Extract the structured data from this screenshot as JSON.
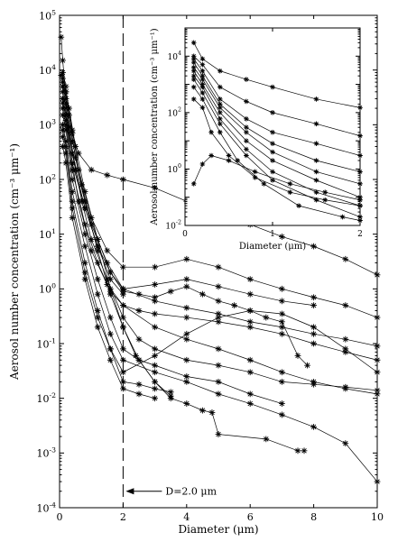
{
  "chart_data": [
    {
      "type": "line",
      "panel": "main",
      "xlabel": "Diameter (μm)",
      "ylabel": "Aerosol number concentration (cm⁻³ μm⁻¹)",
      "xlim": [
        0,
        10
      ],
      "ylim_log10": [
        -4,
        5
      ],
      "yscale": "log",
      "x_ticks": [
        0,
        2,
        4,
        6,
        8,
        10
      ],
      "y_ticks": [
        {
          "value": 0.0001,
          "label": "10",
          "exp": "-4"
        },
        {
          "value": 0.001,
          "label": "10",
          "exp": "-3"
        },
        {
          "value": 0.01,
          "label": "10",
          "exp": "-2"
        },
        {
          "value": 0.1,
          "label": "10",
          "exp": "-1"
        },
        {
          "value": 1,
          "label": "10",
          "exp": "0"
        },
        {
          "value": 10,
          "label": "10",
          "exp": "1"
        },
        {
          "value": 100,
          "label": "10",
          "exp": "2"
        },
        {
          "value": 1000,
          "label": "10",
          "exp": "3"
        },
        {
          "value": 10000,
          "label": "10",
          "exp": "4"
        },
        {
          "value": 100000,
          "label": "10",
          "exp": "5"
        }
      ],
      "grid": false,
      "annotations": [
        {
          "kind": "vline",
          "x": 2.0,
          "style": "dashed"
        },
        {
          "kind": "text",
          "text": "D=2.0 μm",
          "arrow_to_x": 2.0,
          "y": 0.0002
        }
      ],
      "series": [
        {
          "x": [
            0.05,
            0.1,
            0.2,
            0.3,
            0.5,
            0.8,
            1.2,
            1.6,
            2.0
          ],
          "y": [
            40000,
            15000,
            3000,
            900,
            150,
            30,
            6,
            1.5,
            0.8
          ]
        },
        {
          "x": [
            0.05,
            0.1,
            0.2,
            0.3,
            0.5,
            0.8,
            1.2,
            1.6,
            2.0,
            2.4,
            3.0,
            3.5
          ],
          "y": [
            8000,
            9000,
            5000,
            1500,
            250,
            40,
            5,
            0.8,
            0.2,
            0.06,
            0.02,
            0.011
          ]
        },
        {
          "x": [
            0.1,
            0.2,
            0.3,
            0.5,
            0.8,
            1.2,
            1.6,
            2.0,
            2.5,
            3.0,
            3.5,
            4.0,
            4.5,
            4.8,
            5.0,
            6.5,
            7.5,
            7.7
          ],
          "y": [
            5000,
            4000,
            2000,
            400,
            60,
            8,
            1,
            0.2,
            0.05,
            0.02,
            0.01,
            0.008,
            0.006,
            0.0055,
            0.0022,
            0.0018,
            0.0011,
            0.0011
          ]
        },
        {
          "x": [
            0.1,
            0.2,
            0.4,
            0.6,
            1.0,
            1.5,
            2.0,
            3.0,
            4.0,
            5.0,
            6.0,
            7.0,
            8.0,
            9.0,
            10.0
          ],
          "y": [
            6000,
            3000,
            700,
            300,
            150,
            120,
            100,
            70,
            40,
            25,
            15,
            9,
            6,
            3.5,
            1.8
          ]
        },
        {
          "x": [
            0.1,
            0.2,
            0.4,
            0.6,
            1.0,
            1.5,
            2.0,
            3.0,
            4.0,
            5.0,
            6.0,
            7.0,
            8.0,
            9.0,
            10.0
          ],
          "y": [
            7000,
            4000,
            800,
            150,
            20,
            5,
            2.5,
            2.5,
            3.5,
            2.5,
            1.5,
            1.0,
            0.7,
            0.5,
            0.3
          ]
        },
        {
          "x": [
            0.1,
            0.2,
            0.4,
            0.7,
            1.0,
            1.5,
            2.0,
            3.0,
            4.0,
            5.0,
            6.0,
            7.0,
            8.0,
            9.0,
            10.0
          ],
          "y": [
            5000,
            2500,
            500,
            80,
            15,
            3,
            1.0,
            0.6,
            0.45,
            0.35,
            0.25,
            0.2,
            0.15,
            0.12,
            0.09
          ]
        },
        {
          "x": [
            0.1,
            0.2,
            0.4,
            0.7,
            1.0,
            1.5,
            2.0,
            2.5,
            3.0,
            4.0,
            5.0,
            6.0,
            7.0,
            8.0,
            9.0,
            10.0
          ],
          "y": [
            4000,
            2000,
            300,
            40,
            8,
            1.5,
            0.3,
            0.12,
            0.08,
            0.05,
            0.04,
            0.03,
            0.02,
            0.018,
            0.016,
            0.014
          ]
        },
        {
          "x": [
            0.1,
            0.2,
            0.4,
            0.6,
            1.0,
            1.5,
            2.0,
            3.0,
            4.0,
            5.0,
            6.0,
            7.0,
            8.0,
            9.0,
            10.0
          ],
          "y": [
            3000,
            1500,
            200,
            40,
            5,
            1.2,
            0.5,
            0.2,
            0.12,
            0.08,
            0.05,
            0.03,
            0.02,
            0.015,
            0.012
          ]
        },
        {
          "x": [
            0.1,
            0.2,
            0.4,
            0.8,
            1.2,
            1.6,
            2.0,
            2.5,
            3.0,
            3.5,
            4.0,
            4.5,
            5.0,
            5.5,
            6.0,
            6.5,
            7.0,
            7.5,
            7.8
          ],
          "y": [
            3000,
            1500,
            300,
            40,
            8,
            2,
            0.9,
            0.8,
            0.7,
            0.9,
            1.1,
            0.8,
            0.6,
            0.5,
            0.4,
            0.3,
            0.25,
            0.06,
            0.04
          ]
        },
        {
          "x": [
            0.1,
            0.2,
            0.4,
            0.8,
            1.2,
            1.6,
            2.0,
            3.0,
            4.0,
            5.0,
            6.0,
            7.0,
            8.0
          ],
          "y": [
            2500,
            1200,
            200,
            30,
            6,
            2,
            1.0,
            1.2,
            1.5,
            1.1,
            0.8,
            0.6,
            0.5
          ]
        },
        {
          "x": [
            0.1,
            0.2,
            0.4,
            0.8,
            1.2,
            1.6,
            2.0,
            2.5,
            3.0,
            4.0,
            5.0,
            6.0,
            7.0
          ],
          "y": [
            1500,
            800,
            100,
            10,
            1.5,
            0.3,
            0.08,
            0.05,
            0.04,
            0.025,
            0.02,
            0.012,
            0.008
          ]
        },
        {
          "x": [
            0.1,
            0.2,
            0.4,
            0.8,
            1.2,
            1.6,
            2.0,
            3.0,
            4.0,
            5.0,
            6.0,
            7.0,
            8.0,
            9.0,
            10.0
          ],
          "y": [
            1000,
            500,
            60,
            6,
            0.8,
            0.15,
            0.05,
            0.03,
            0.02,
            0.012,
            0.008,
            0.005,
            0.003,
            0.0015,
            0.0003
          ]
        },
        {
          "x": [
            0.1,
            0.2,
            0.4,
            0.8,
            1.2,
            1.6,
            2.0,
            2.5,
            3.0,
            3.5
          ],
          "y": [
            800,
            400,
            40,
            3,
            0.4,
            0.08,
            0.02,
            0.018,
            0.015,
            0.013
          ]
        },
        {
          "x": [
            0.1,
            0.2,
            0.4,
            0.8,
            1.2,
            1.6,
            2.0,
            3.0,
            4.0,
            5.0,
            6.0,
            7.0,
            8.0,
            9.0,
            10.0
          ],
          "y": [
            600,
            300,
            30,
            2,
            0.3,
            0.08,
            0.03,
            0.06,
            0.15,
            0.3,
            0.4,
            0.35,
            0.2,
            0.08,
            0.03
          ]
        },
        {
          "x": [
            0.1,
            0.2,
            0.4,
            0.8,
            1.2,
            1.6,
            2.0,
            2.5,
            3.0,
            4.0,
            5.0,
            6.0,
            7.0,
            8.0,
            9.0,
            10.0
          ],
          "y": [
            2000,
            1000,
            150,
            15,
            3,
            0.9,
            0.5,
            0.4,
            0.35,
            0.3,
            0.25,
            0.2,
            0.15,
            0.1,
            0.07,
            0.05
          ]
        },
        {
          "x": [
            0.1,
            0.2,
            0.4,
            0.8,
            1.2,
            1.6,
            2.0,
            2.5,
            3.0
          ],
          "y": [
            400,
            200,
            20,
            1.5,
            0.2,
            0.05,
            0.015,
            0.012,
            0.01
          ]
        }
      ]
    },
    {
      "type": "line",
      "panel": "inset",
      "xlabel": "Diameter (μm)",
      "ylabel": "Aerosol number concentration (cm⁻³ μm⁻¹)",
      "xlim": [
        0,
        2
      ],
      "ylim_log10": [
        -2,
        5
      ],
      "yscale": "log",
      "x_ticks": [
        0,
        1,
        2
      ],
      "y_ticks": [
        {
          "value": 0.01,
          "label": "10",
          "exp": "-2"
        },
        {
          "value": 1,
          "label": "10",
          "exp": "0"
        },
        {
          "value": 100,
          "label": "10",
          "exp": "2"
        },
        {
          "value": 10000,
          "label": "10",
          "exp": "4"
        }
      ],
      "grid": false,
      "series": [
        {
          "x": [
            0.1,
            0.2,
            0.4,
            0.7,
            1.0,
            1.5,
            2.0
          ],
          "y": [
            30000,
            8000,
            3000,
            1500,
            800,
            300,
            150
          ]
        },
        {
          "x": [
            0.1,
            0.2,
            0.4,
            0.7,
            1.0,
            1.5,
            2.0
          ],
          "y": [
            10000,
            5000,
            800,
            250,
            100,
            40,
            15
          ]
        },
        {
          "x": [
            0.1,
            0.2,
            0.4,
            0.7,
            1.0,
            1.5,
            2.0
          ],
          "y": [
            8000,
            3000,
            300,
            60,
            20,
            8,
            3
          ]
        },
        {
          "x": [
            0.1,
            0.2,
            0.4,
            0.7,
            1.0,
            1.5,
            2.0
          ],
          "y": [
            6000,
            2000,
            200,
            30,
            8,
            2,
            0.8
          ]
        },
        {
          "x": [
            0.1,
            0.2,
            0.4,
            0.7,
            1.0,
            1.5,
            2.0
          ],
          "y": [
            4000,
            1500,
            150,
            20,
            4,
            0.8,
            0.3
          ]
        },
        {
          "x": [
            0.1,
            0.2,
            0.4,
            0.7,
            1.0,
            1.5,
            2.0
          ],
          "y": [
            3000,
            1000,
            100,
            10,
            2,
            0.4,
            0.1
          ]
        },
        {
          "x": [
            0.1,
            0.2,
            0.4,
            0.7,
            1.0,
            1.5,
            2.0
          ],
          "y": [
            2000,
            800,
            60,
            5,
            0.8,
            0.15,
            0.05
          ]
        },
        {
          "x": [
            0.1,
            0.2,
            0.4,
            0.7,
            1.0,
            1.5,
            2.0
          ],
          "y": [
            1500,
            500,
            40,
            3,
            0.4,
            0.08,
            0.02
          ]
        },
        {
          "x": [
            0.1,
            0.2,
            0.4,
            0.6,
            0.9,
            1.3,
            1.8,
            2.0
          ],
          "y": [
            800,
            300,
            20,
            2,
            0.3,
            0.05,
            0.02,
            0.015
          ]
        },
        {
          "x": [
            0.1,
            0.2,
            0.3,
            0.5,
            0.8,
            1.2,
            1.6,
            2.0
          ],
          "y": [
            300,
            150,
            20,
            3,
            0.5,
            0.15,
            0.08,
            0.05
          ]
        },
        {
          "x": [
            0.1,
            0.2,
            0.3,
            0.5,
            0.8,
            1.2,
            1.6,
            2.0
          ],
          "y": [
            0.3,
            1.5,
            3,
            2,
            0.8,
            0.3,
            0.15,
            0.08
          ]
        }
      ]
    }
  ]
}
